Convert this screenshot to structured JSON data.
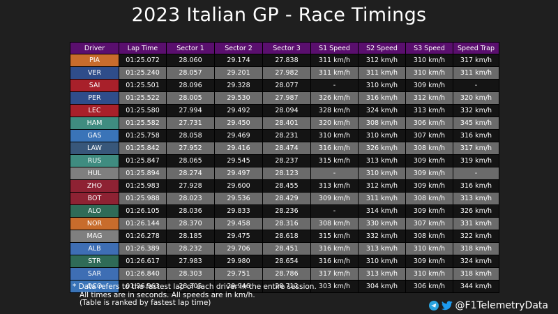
{
  "title": "2023 Italian GP - Race Timings",
  "watermark": "F1 Telemetry",
  "headers": [
    "Driver",
    "Lap Time",
    "Sector 1",
    "Sector 2",
    "Sector 3",
    "S1 Speed",
    "S2 Speed",
    "S3 Speed",
    "Speed Trap"
  ],
  "colors": {
    "header": "#5a0f6e",
    "dark_row": "#141414",
    "light_row": "#6b6b6b",
    "mclaren": "#c86c2c",
    "red_bull": "#2f4d8a",
    "ferrari": "#a8202a",
    "mercedes": "#3f8c80",
    "alpine": "#3a74b8",
    "williams": "#3e6eb4",
    "haas": "#7f7f7f",
    "alfa_romeo": "#8e2233",
    "aston_martin": "#2f6b57",
    "alphatauri": "#38577a"
  },
  "rows": [
    {
      "driver": "PIA",
      "color": "#c86c2c",
      "lap": "01:25.072",
      "s1": "28.060",
      "s2": "29.174",
      "s3": "27.838",
      "sp1": "311 km/h",
      "sp2": "312 km/h",
      "sp3": "310 km/h",
      "trap": "317 km/h"
    },
    {
      "driver": "VER",
      "color": "#2f4d8a",
      "lap": "01:25.240",
      "s1": "28.057",
      "s2": "29.201",
      "s3": "27.982",
      "sp1": "311 km/h",
      "sp2": "311 km/h",
      "sp3": "310 km/h",
      "trap": "311 km/h"
    },
    {
      "driver": "SAI",
      "color": "#a8202a",
      "lap": "01:25.501",
      "s1": "28.096",
      "s2": "29.328",
      "s3": "28.077",
      "sp1": "-",
      "sp2": "310 km/h",
      "sp3": "309 km/h",
      "trap": "-"
    },
    {
      "driver": "PER",
      "color": "#2f4d8a",
      "lap": "01:25.522",
      "s1": "28.005",
      "s2": "29.530",
      "s3": "27.987",
      "sp1": "326 km/h",
      "sp2": "316 km/h",
      "sp3": "312 km/h",
      "trap": "320 km/h"
    },
    {
      "driver": "LEC",
      "color": "#a8202a",
      "lap": "01:25.580",
      "s1": "27.994",
      "s2": "29.492",
      "s3": "28.094",
      "sp1": "328 km/h",
      "sp2": "324 km/h",
      "sp3": "313 km/h",
      "trap": "332 km/h"
    },
    {
      "driver": "HAM",
      "color": "#3f8c80",
      "lap": "01:25.582",
      "s1": "27.731",
      "s2": "29.450",
      "s3": "28.401",
      "sp1": "320 km/h",
      "sp2": "308 km/h",
      "sp3": "306 km/h",
      "trap": "345 km/h"
    },
    {
      "driver": "GAS",
      "color": "#3a74b8",
      "lap": "01:25.758",
      "s1": "28.058",
      "s2": "29.469",
      "s3": "28.231",
      "sp1": "310 km/h",
      "sp2": "310 km/h",
      "sp3": "307 km/h",
      "trap": "316 km/h"
    },
    {
      "driver": "LAW",
      "color": "#38577a",
      "lap": "01:25.842",
      "s1": "27.952",
      "s2": "29.416",
      "s3": "28.474",
      "sp1": "316 km/h",
      "sp2": "326 km/h",
      "sp3": "308 km/h",
      "trap": "317 km/h"
    },
    {
      "driver": "RUS",
      "color": "#3f8c80",
      "lap": "01:25.847",
      "s1": "28.065",
      "s2": "29.545",
      "s3": "28.237",
      "sp1": "315 km/h",
      "sp2": "313 km/h",
      "sp3": "309 km/h",
      "trap": "319 km/h"
    },
    {
      "driver": "HUL",
      "color": "#7f7f7f",
      "lap": "01:25.894",
      "s1": "28.274",
      "s2": "29.497",
      "s3": "28.123",
      "sp1": "-",
      "sp2": "310 km/h",
      "sp3": "309 km/h",
      "trap": "-"
    },
    {
      "driver": "ZHO",
      "color": "#8e2233",
      "lap": "01:25.983",
      "s1": "27.928",
      "s2": "29.600",
      "s3": "28.455",
      "sp1": "313 km/h",
      "sp2": "312 km/h",
      "sp3": "309 km/h",
      "trap": "316 km/h"
    },
    {
      "driver": "BOT",
      "color": "#8e2233",
      "lap": "01:25.988",
      "s1": "28.023",
      "s2": "29.536",
      "s3": "28.429",
      "sp1": "309 km/h",
      "sp2": "311 km/h",
      "sp3": "308 km/h",
      "trap": "313 km/h"
    },
    {
      "driver": "ALO",
      "color": "#2f6b57",
      "lap": "01:26.105",
      "s1": "28.036",
      "s2": "29.833",
      "s3": "28.236",
      "sp1": "-",
      "sp2": "314 km/h",
      "sp3": "309 km/h",
      "trap": "326 km/h"
    },
    {
      "driver": "NOR",
      "color": "#c86c2c",
      "lap": "01:26.144",
      "s1": "28.370",
      "s2": "29.458",
      "s3": "28.316",
      "sp1": "308 km/h",
      "sp2": "330 km/h",
      "sp3": "307 km/h",
      "trap": "331 km/h"
    },
    {
      "driver": "MAG",
      "color": "#7f7f7f",
      "lap": "01:26.278",
      "s1": "28.185",
      "s2": "29.475",
      "s3": "28.618",
      "sp1": "315 km/h",
      "sp2": "332 km/h",
      "sp3": "308 km/h",
      "trap": "322 km/h"
    },
    {
      "driver": "ALB",
      "color": "#3e6eb4",
      "lap": "01:26.389",
      "s1": "28.232",
      "s2": "29.706",
      "s3": "28.451",
      "sp1": "316 km/h",
      "sp2": "313 km/h",
      "sp3": "310 km/h",
      "trap": "318 km/h"
    },
    {
      "driver": "STR",
      "color": "#2f6b57",
      "lap": "01:26.617",
      "s1": "27.983",
      "s2": "29.980",
      "s3": "28.654",
      "sp1": "316 km/h",
      "sp2": "310 km/h",
      "sp3": "309 km/h",
      "trap": "324 km/h"
    },
    {
      "driver": "SAR",
      "color": "#3e6eb4",
      "lap": "01:26.840",
      "s1": "28.303",
      "s2": "29.751",
      "s3": "28.786",
      "sp1": "317 km/h",
      "sp2": "313 km/h",
      "sp3": "310 km/h",
      "trap": "318 km/h"
    },
    {
      "driver": "OCO",
      "color": "#3a74b8",
      "lap": "01:26.963",
      "s1": "28.305",
      "s2": "29.946",
      "s3": "28.712",
      "sp1": "303 km/h",
      "sp2": "304 km/h",
      "sp3": "306 km/h",
      "trap": "344 km/h"
    }
  ],
  "footnote": [
    "* Data refers to the fastest lap of each driver in the entire session.",
    "   All times are in seconds. All speeds are in km/h.",
    "   (Table is ranked by fastest lap time)"
  ],
  "social": {
    "handle": "@F1TelemetryData",
    "icons": [
      "telegram-icon",
      "twitter-icon"
    ]
  }
}
